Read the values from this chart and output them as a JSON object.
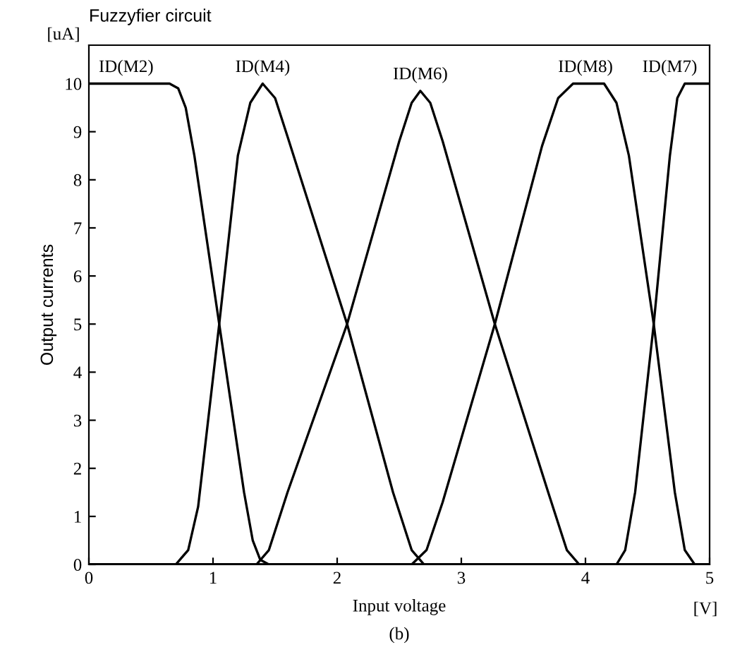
{
  "chart_data": {
    "type": "line",
    "title": "Fuzzyfier circuit",
    "xlabel": "Input voltage",
    "ylabel": "Output currents",
    "xlim": [
      0,
      5
    ],
    "ylim": [
      0,
      10.8
    ],
    "xticks": [
      0,
      1,
      2,
      3,
      4,
      5
    ],
    "yticks": [
      0,
      1,
      2,
      3,
      4,
      5,
      6,
      7,
      8,
      9,
      10
    ],
    "grid": false,
    "legend": false,
    "marker": "none",
    "line_style": "solid",
    "series": [
      {
        "color": "#000000",
        "x": [
          0,
          0.65,
          0.72,
          0.78,
          0.85,
          1.05,
          1.25,
          1.32,
          1.38,
          1.45,
          5
        ],
        "values": [
          10,
          10,
          9.9,
          9.5,
          8.5,
          5,
          1.5,
          0.5,
          0.1,
          0,
          0
        ]
      },
      {
        "color": "#000000",
        "x": [
          0,
          0.7,
          0.8,
          0.88,
          1.05,
          1.2,
          1.3,
          1.4,
          1.5,
          1.6,
          2.08,
          2.45,
          2.6,
          2.7,
          5
        ],
        "values": [
          0,
          0,
          0.3,
          1.2,
          5,
          8.5,
          9.6,
          10,
          9.7,
          8.9,
          5,
          1.5,
          0.3,
          0,
          0
        ]
      },
      {
        "color": "#000000",
        "x": [
          0,
          1.35,
          1.45,
          1.6,
          2.08,
          2.5,
          2.6,
          2.67,
          2.75,
          2.85,
          3.27,
          3.7,
          3.85,
          3.95,
          5
        ],
        "values": [
          0,
          0,
          0.3,
          1.5,
          5,
          8.8,
          9.6,
          9.85,
          9.6,
          8.8,
          5,
          1.5,
          0.3,
          0,
          0
        ]
      },
      {
        "color": "#000000",
        "x": [
          0,
          2.6,
          2.72,
          2.85,
          3.27,
          3.65,
          3.78,
          3.9,
          4.15,
          4.25,
          4.35,
          4.55,
          4.72,
          4.8,
          4.88,
          5
        ],
        "values": [
          0,
          0,
          0.3,
          1.3,
          5,
          8.7,
          9.7,
          10,
          10,
          9.6,
          8.5,
          5,
          1.5,
          0.3,
          0,
          0
        ]
      },
      {
        "color": "#000000",
        "x": [
          0,
          4.25,
          4.32,
          4.4,
          4.55,
          4.68,
          4.74,
          4.8,
          5
        ],
        "values": [
          0,
          0,
          0.3,
          1.5,
          5,
          8.5,
          9.7,
          10,
          10
        ]
      }
    ],
    "annotations": [
      {
        "text": "ID(M2)",
        "x": 0.3,
        "y": 10
      },
      {
        "text": "ID(M4)",
        "x": 1.4,
        "y": 10
      },
      {
        "text": "ID(M6)",
        "x": 2.67,
        "y": 9.85
      },
      {
        "text": "ID(M8)",
        "x": 4.0,
        "y": 10
      },
      {
        "text": "ID(M7)",
        "x": 4.9,
        "y": 10
      },
      "[uA]",
      "[V]",
      "(b)"
    ]
  }
}
